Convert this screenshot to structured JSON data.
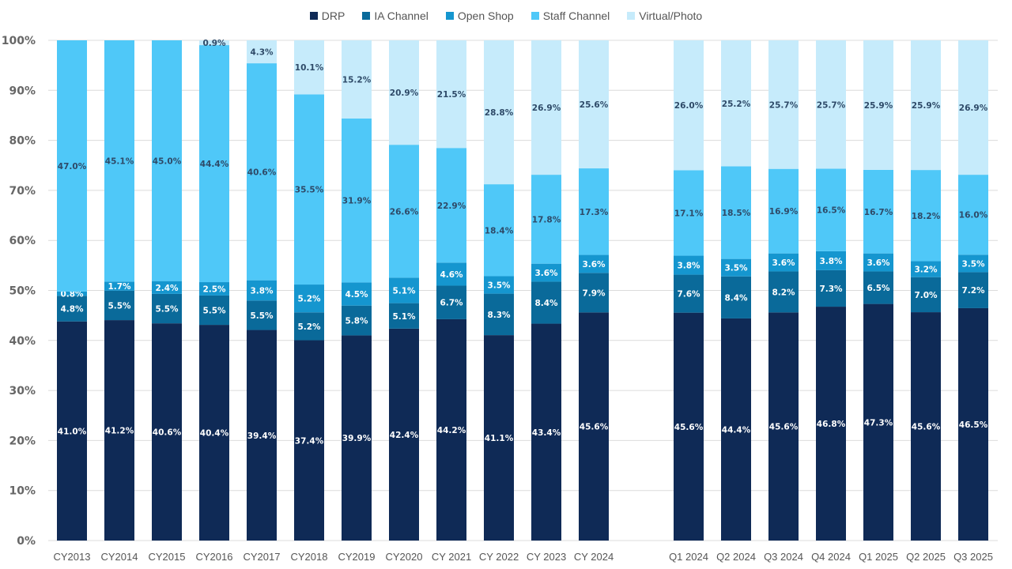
{
  "chart_data": {
    "type": "bar",
    "stacked": true,
    "normalized": true,
    "title": "",
    "xlabel": "",
    "ylabel": "",
    "ylim": [
      0,
      100
    ],
    "yticks": [
      "0%",
      "10%",
      "20%",
      "30%",
      "40%",
      "50%",
      "60%",
      "70%",
      "80%",
      "90%",
      "100%"
    ],
    "grid": true,
    "legend_position": "top",
    "categories": [
      "CY2013",
      "CY2014",
      "CY2015",
      "CY2016",
      "CY2017",
      "CY2018",
      "CY2019",
      "CY2020",
      "CY 2021",
      "CY 2022",
      "CY 2023",
      "CY 2024",
      "Q1 2024",
      "Q2 2024",
      "Q3 2024",
      "Q4 2024",
      "Q1 2025",
      "Q2 2025",
      "Q3 2025"
    ],
    "series": [
      {
        "name": "DRP",
        "color": "#0f2a56",
        "label_color": "#ffffff",
        "values": [
          41.0,
          41.2,
          40.6,
          40.4,
          39.4,
          37.4,
          39.9,
          42.4,
          44.2,
          41.1,
          43.4,
          45.6,
          45.6,
          44.4,
          45.6,
          46.8,
          47.3,
          45.6,
          46.5
        ]
      },
      {
        "name": "IA Channel",
        "color": "#0a6a9a",
        "label_color": "#ffffff",
        "values": [
          4.8,
          5.5,
          5.5,
          5.5,
          5.5,
          5.2,
          5.8,
          5.1,
          6.7,
          8.3,
          8.4,
          7.9,
          7.6,
          8.4,
          8.2,
          7.3,
          6.5,
          7.0,
          7.2
        ]
      },
      {
        "name": "Open Shop",
        "color": "#1596cf",
        "label_color": "#ffffff",
        "values": [
          0.8,
          1.7,
          2.4,
          2.5,
          3.8,
          5.2,
          4.5,
          5.1,
          4.6,
          3.5,
          3.6,
          3.6,
          3.8,
          3.5,
          3.6,
          3.8,
          3.6,
          3.2,
          3.5
        ]
      },
      {
        "name": "Staff Channel",
        "color": "#4fc8f8",
        "label_color": "#2e4a68",
        "values": [
          47.0,
          45.1,
          45.0,
          44.4,
          40.6,
          35.5,
          31.9,
          26.6,
          22.9,
          18.4,
          17.8,
          17.3,
          17.1,
          18.5,
          16.9,
          16.5,
          16.7,
          18.2,
          16.0
        ]
      },
      {
        "name": "Virtual/Photo",
        "color": "#c6ebfb",
        "label_color": "#2e4a68",
        "values": [
          null,
          null,
          null,
          0.9,
          4.3,
          10.1,
          15.2,
          20.9,
          21.5,
          28.8,
          26.9,
          25.6,
          26.0,
          25.2,
          25.7,
          25.7,
          25.9,
          25.9,
          26.9
        ]
      }
    ]
  }
}
